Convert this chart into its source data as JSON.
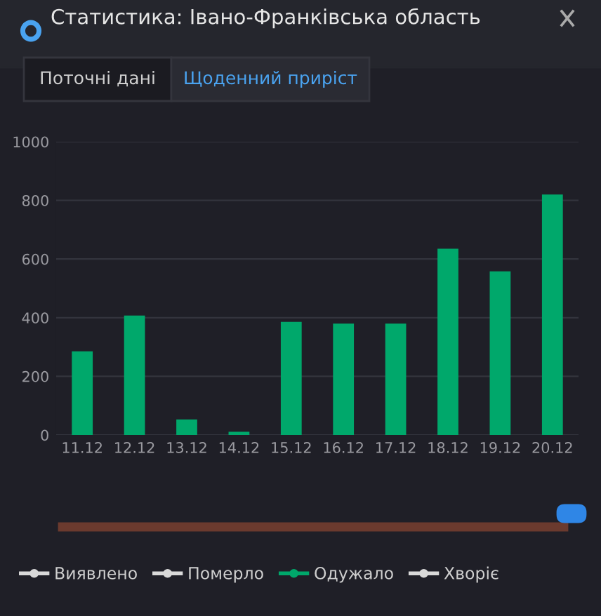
{
  "chart_data": {
    "type": "bar",
    "title": "Статистика: Івано-Франківська область",
    "annotations": [
      "Поточні дані",
      "Щоденний приріст"
    ],
    "categories": [
      "11.12",
      "12.12",
      "13.12",
      "14.12",
      "15.12",
      "16.12",
      "17.12",
      "18.12",
      "19.12",
      "20.12"
    ],
    "series": [
      {
        "name": "Виявлено",
        "color": "#d9d9d9",
        "values": [
          null,
          null,
          null,
          null,
          null,
          null,
          null,
          null,
          null,
          null
        ]
      },
      {
        "name": "Померло",
        "color": "#d9d9d9",
        "values": [
          null,
          null,
          null,
          null,
          null,
          null,
          null,
          null,
          null,
          null
        ]
      },
      {
        "name": "Одужало",
        "color": "#00a86b",
        "values": [
          285,
          407,
          53,
          11,
          386,
          380,
          380,
          635,
          558,
          820
        ]
      },
      {
        "name": "Хворіє",
        "color": "#d9d9d9",
        "values": [
          null,
          null,
          null,
          null,
          null,
          null,
          null,
          null,
          null,
          null
        ]
      }
    ],
    "ylim": [
      0,
      1000
    ],
    "yticks": [
      0,
      200,
      400,
      600,
      800,
      1000
    ],
    "grid": "y",
    "legend": "bottom"
  }
}
